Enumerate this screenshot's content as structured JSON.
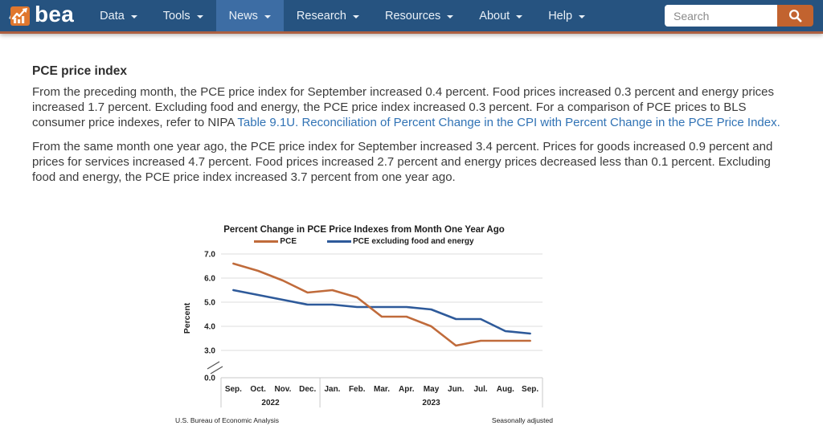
{
  "navbar": {
    "brand": "bea",
    "items": [
      {
        "label": "Data",
        "active": false
      },
      {
        "label": "Tools",
        "active": false
      },
      {
        "label": "News",
        "active": true
      },
      {
        "label": "Research",
        "active": false
      },
      {
        "label": "Resources",
        "active": false
      },
      {
        "label": "About",
        "active": false
      },
      {
        "label": "Help",
        "active": false
      }
    ],
    "search_placeholder": "Search"
  },
  "article": {
    "title": "PCE price index",
    "paragraph1_before": "From the preceding month, the PCE price index for September increased 0.4 percent. Food prices increased 0.3 percent and energy prices increased 1.7 percent. Excluding food and energy, the PCE price index increased 0.3 percent. For a comparison of PCE prices to BLS consumer price indexes, refer to NIPA ",
    "paragraph1_link": "Table 9.1U. Reconciliation of Percent Change in the CPI with Percent Change in the PCE Price Index.",
    "paragraph2": "From the same month one year ago, the PCE price index for September increased 3.4 percent. Prices for goods increased 0.9 percent and prices for services increased 4.7 percent. Food prices increased 2.7 percent and energy prices decreased less than 0.1 percent. Excluding food and energy, the PCE price index increased 3.7 percent from one year ago."
  },
  "chart_data": {
    "type": "line",
    "title": "Percent Change in PCE Price Indexes from Month One Year Ago",
    "ylabel": "Percent",
    "categories": [
      "Sep.",
      "Oct.",
      "Nov.",
      "Dec.",
      "Jan.",
      "Feb.",
      "Mar.",
      "Apr.",
      "May",
      "Jun.",
      "Jul.",
      "Aug.",
      "Sep."
    ],
    "year_groups": [
      {
        "label": "2022",
        "months": 4
      },
      {
        "label": "2023",
        "months": 9
      }
    ],
    "series": [
      {
        "name": "PCE",
        "color": "#c06b3b",
        "values": [
          6.6,
          6.3,
          5.9,
          5.4,
          5.5,
          5.2,
          4.4,
          4.4,
          4.0,
          3.2,
          3.4,
          3.4,
          3.4
        ]
      },
      {
        "name": "PCE excluding food and energy",
        "color": "#2e5a9a",
        "values": [
          5.5,
          5.3,
          5.1,
          4.9,
          4.9,
          4.8,
          4.8,
          4.8,
          4.7,
          4.3,
          4.3,
          3.8,
          3.7
        ]
      }
    ],
    "y_ticks": [
      7.0,
      6.0,
      5.0,
      4.0,
      3.0
    ],
    "baseline_tick": "0.0",
    "y_axis_break": true,
    "grid": true,
    "legend_position": "top",
    "source_note": "U.S. Bureau of Economic Analysis",
    "note_right": "Seasonally adjusted",
    "colors": {
      "grid": "#dcdcdc",
      "axis": "#c9c9c9",
      "text": "#222222"
    }
  }
}
